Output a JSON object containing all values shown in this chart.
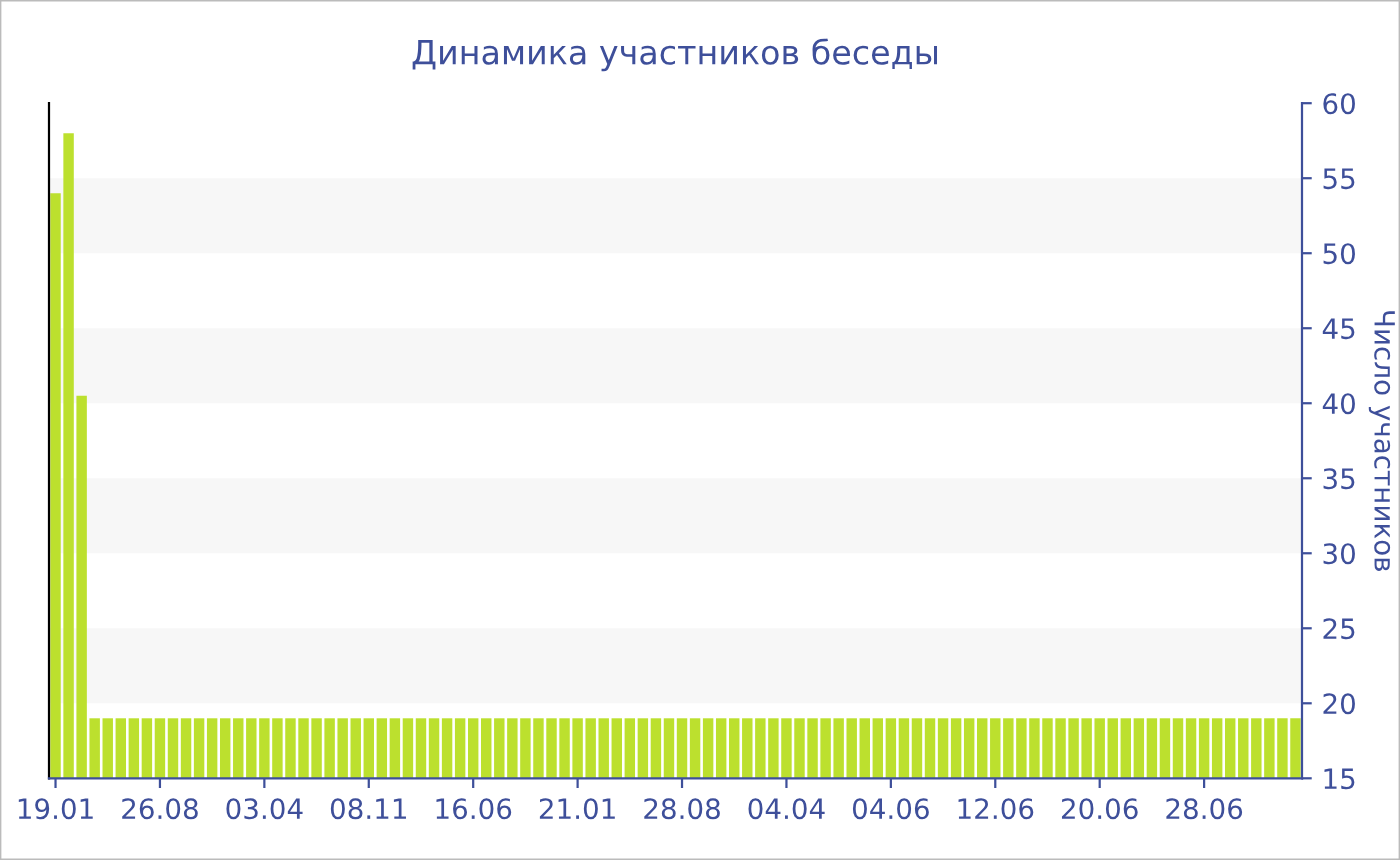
{
  "chart_data": {
    "type": "bar",
    "title": "Динамика участников беседы",
    "ylabel": "Число участников",
    "categories": [
      "19.01",
      null,
      null,
      null,
      null,
      null,
      null,
      null,
      "26.08",
      null,
      null,
      null,
      null,
      null,
      null,
      null,
      "03.04",
      null,
      null,
      null,
      null,
      null,
      null,
      null,
      "08.11",
      null,
      null,
      null,
      null,
      null,
      null,
      null,
      "16.06",
      null,
      null,
      null,
      null,
      null,
      null,
      null,
      "21.01",
      null,
      null,
      null,
      null,
      null,
      null,
      null,
      "28.08",
      null,
      null,
      null,
      null,
      null,
      null,
      null,
      "04.04",
      null,
      null,
      null,
      null,
      null,
      null,
      null,
      "04.06",
      null,
      null,
      null,
      null,
      null,
      null,
      null,
      "12.06",
      null,
      null,
      null,
      null,
      null,
      null,
      null,
      "20.06",
      null,
      null,
      null,
      null,
      null,
      null,
      null,
      "28.06",
      null,
      null,
      null,
      null,
      null,
      null,
      null
    ],
    "values": [
      54,
      58,
      40.5,
      19,
      19,
      19,
      19,
      19,
      19,
      19,
      19,
      19,
      19,
      19,
      19,
      19,
      19,
      19,
      19,
      19,
      19,
      19,
      19,
      19,
      19,
      19,
      19,
      19,
      19,
      19,
      19,
      19,
      19,
      19,
      19,
      19,
      19,
      19,
      19,
      19,
      19,
      19,
      19,
      19,
      19,
      19,
      19,
      19,
      19,
      19,
      19,
      19,
      19,
      19,
      19,
      19,
      19,
      19,
      19,
      19,
      19,
      19,
      19,
      19,
      19,
      19,
      19,
      19,
      19,
      19,
      19,
      19,
      19,
      19,
      19,
      19,
      19,
      19,
      19,
      19,
      19,
      19,
      19,
      19,
      19,
      19,
      19,
      19,
      19,
      19,
      19,
      19,
      19,
      19,
      19,
      19
    ],
    "color": "#bce02e",
    "ylim": [
      15,
      60
    ],
    "yticks": [
      15,
      20,
      25,
      30,
      35,
      40,
      45,
      50,
      55,
      60
    ],
    "bands": [
      {
        "axis": "y",
        "from": 20,
        "to": 25,
        "color": "#f7f7f7"
      },
      {
        "axis": "y",
        "from": 30,
        "to": 35,
        "color": "#f7f7f7"
      },
      {
        "axis": "y",
        "from": 40,
        "to": 45,
        "color": "#f7f7f7"
      },
      {
        "axis": "y",
        "from": 50,
        "to": 55,
        "color": "#f7f7f7"
      }
    ],
    "grid": false,
    "legend": false
  }
}
